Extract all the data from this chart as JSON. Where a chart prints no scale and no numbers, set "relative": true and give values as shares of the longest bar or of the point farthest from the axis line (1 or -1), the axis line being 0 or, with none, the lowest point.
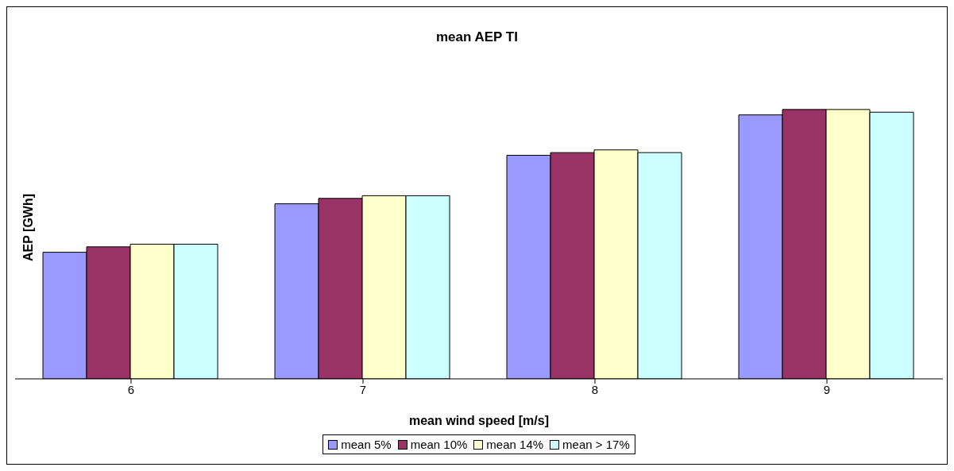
{
  "chart_data": {
    "type": "bar",
    "title": "mean AEP TI",
    "xlabel": "mean wind speed [m/s]",
    "ylabel": "AEP [GWh]",
    "relative": true,
    "categories": [
      "6",
      "7",
      "8",
      "9"
    ],
    "series": [
      {
        "name": "mean 5%",
        "color": "#9999ff",
        "values": [
          0.47,
          0.65,
          0.83,
          0.98
        ]
      },
      {
        "name": "mean 10%",
        "color": "#993366",
        "values": [
          0.49,
          0.67,
          0.84,
          1
        ]
      },
      {
        "name": "mean 14%",
        "color": "#ffffcc",
        "values": [
          0.5,
          0.68,
          0.85,
          1
        ]
      },
      {
        "name": "mean > 17%",
        "color": "#ccffff",
        "values": [
          0.5,
          0.68,
          0.84,
          0.99
        ]
      }
    ],
    "legend": "bottom",
    "grid": false
  }
}
